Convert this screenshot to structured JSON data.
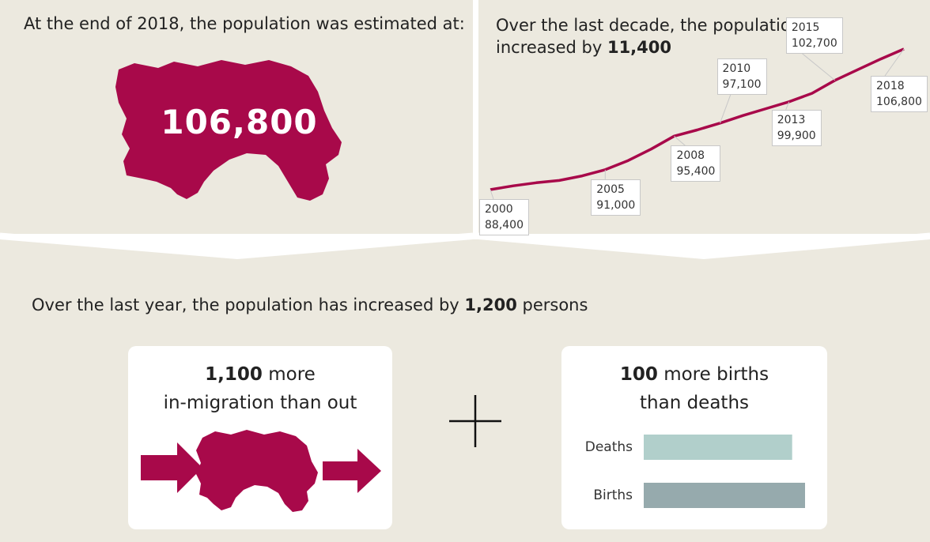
{
  "top_left": {
    "headline": "At the end of 2018, the population was estimated at:",
    "population_value": "106,800"
  },
  "top_right": {
    "headline_line1": "Over the last decade, the population has",
    "headline_prefix": "increased by ",
    "headline_value": "11,400"
  },
  "bottom": {
    "headline_prefix": "Over the last year, the population has increased by ",
    "headline_value": "1,200",
    "headline_suffix": " persons",
    "migration_card": {
      "value": "1,100",
      "line1_rest": " more",
      "line2": "in-migration than out"
    },
    "natural_card": {
      "value": "100",
      "line1_rest": " more births",
      "line2": "than deaths"
    }
  },
  "colors": {
    "brand": "#a8094a",
    "panel_bg": "#ece9df",
    "deaths_bar": "#b1cfcb",
    "births_bar": "#96aaad"
  },
  "chart_data": [
    {
      "type": "line",
      "x": [
        2000,
        2001,
        2002,
        2003,
        2004,
        2005,
        2006,
        2007,
        2008,
        2009,
        2010,
        2011,
        2012,
        2013,
        2014,
        2015,
        2016,
        2017,
        2018
      ],
      "series": [
        {
          "values": [
            88400,
            88900,
            89300,
            89600,
            90200,
            91000,
            92200,
            93700,
            95400,
            96200,
            97100,
            98100,
            99000,
            99900,
            101000,
            102700,
            104100,
            105500,
            106800
          ]
        }
      ],
      "labeled_points": [
        {
          "year": "2000",
          "value": "88,400"
        },
        {
          "year": "2005",
          "value": "91,000"
        },
        {
          "year": "2008",
          "value": "95,400"
        },
        {
          "year": "2010",
          "value": "97,100"
        },
        {
          "year": "2013",
          "value": "99,900"
        },
        {
          "year": "2015",
          "value": "102,700"
        },
        {
          "year": "2018",
          "value": "106,800"
        }
      ],
      "title": "",
      "xlabel": "",
      "ylabel": "",
      "xlim": [
        2000,
        2018
      ],
      "ylim": [
        85000,
        110000
      ],
      "grid": false
    },
    {
      "type": "bar",
      "orientation": "horizontal",
      "categories": [
        "Deaths",
        "Births"
      ],
      "values": [
        0.92,
        1.0
      ],
      "title": "",
      "xlabel": "",
      "ylabel": "",
      "grid": false
    }
  ]
}
